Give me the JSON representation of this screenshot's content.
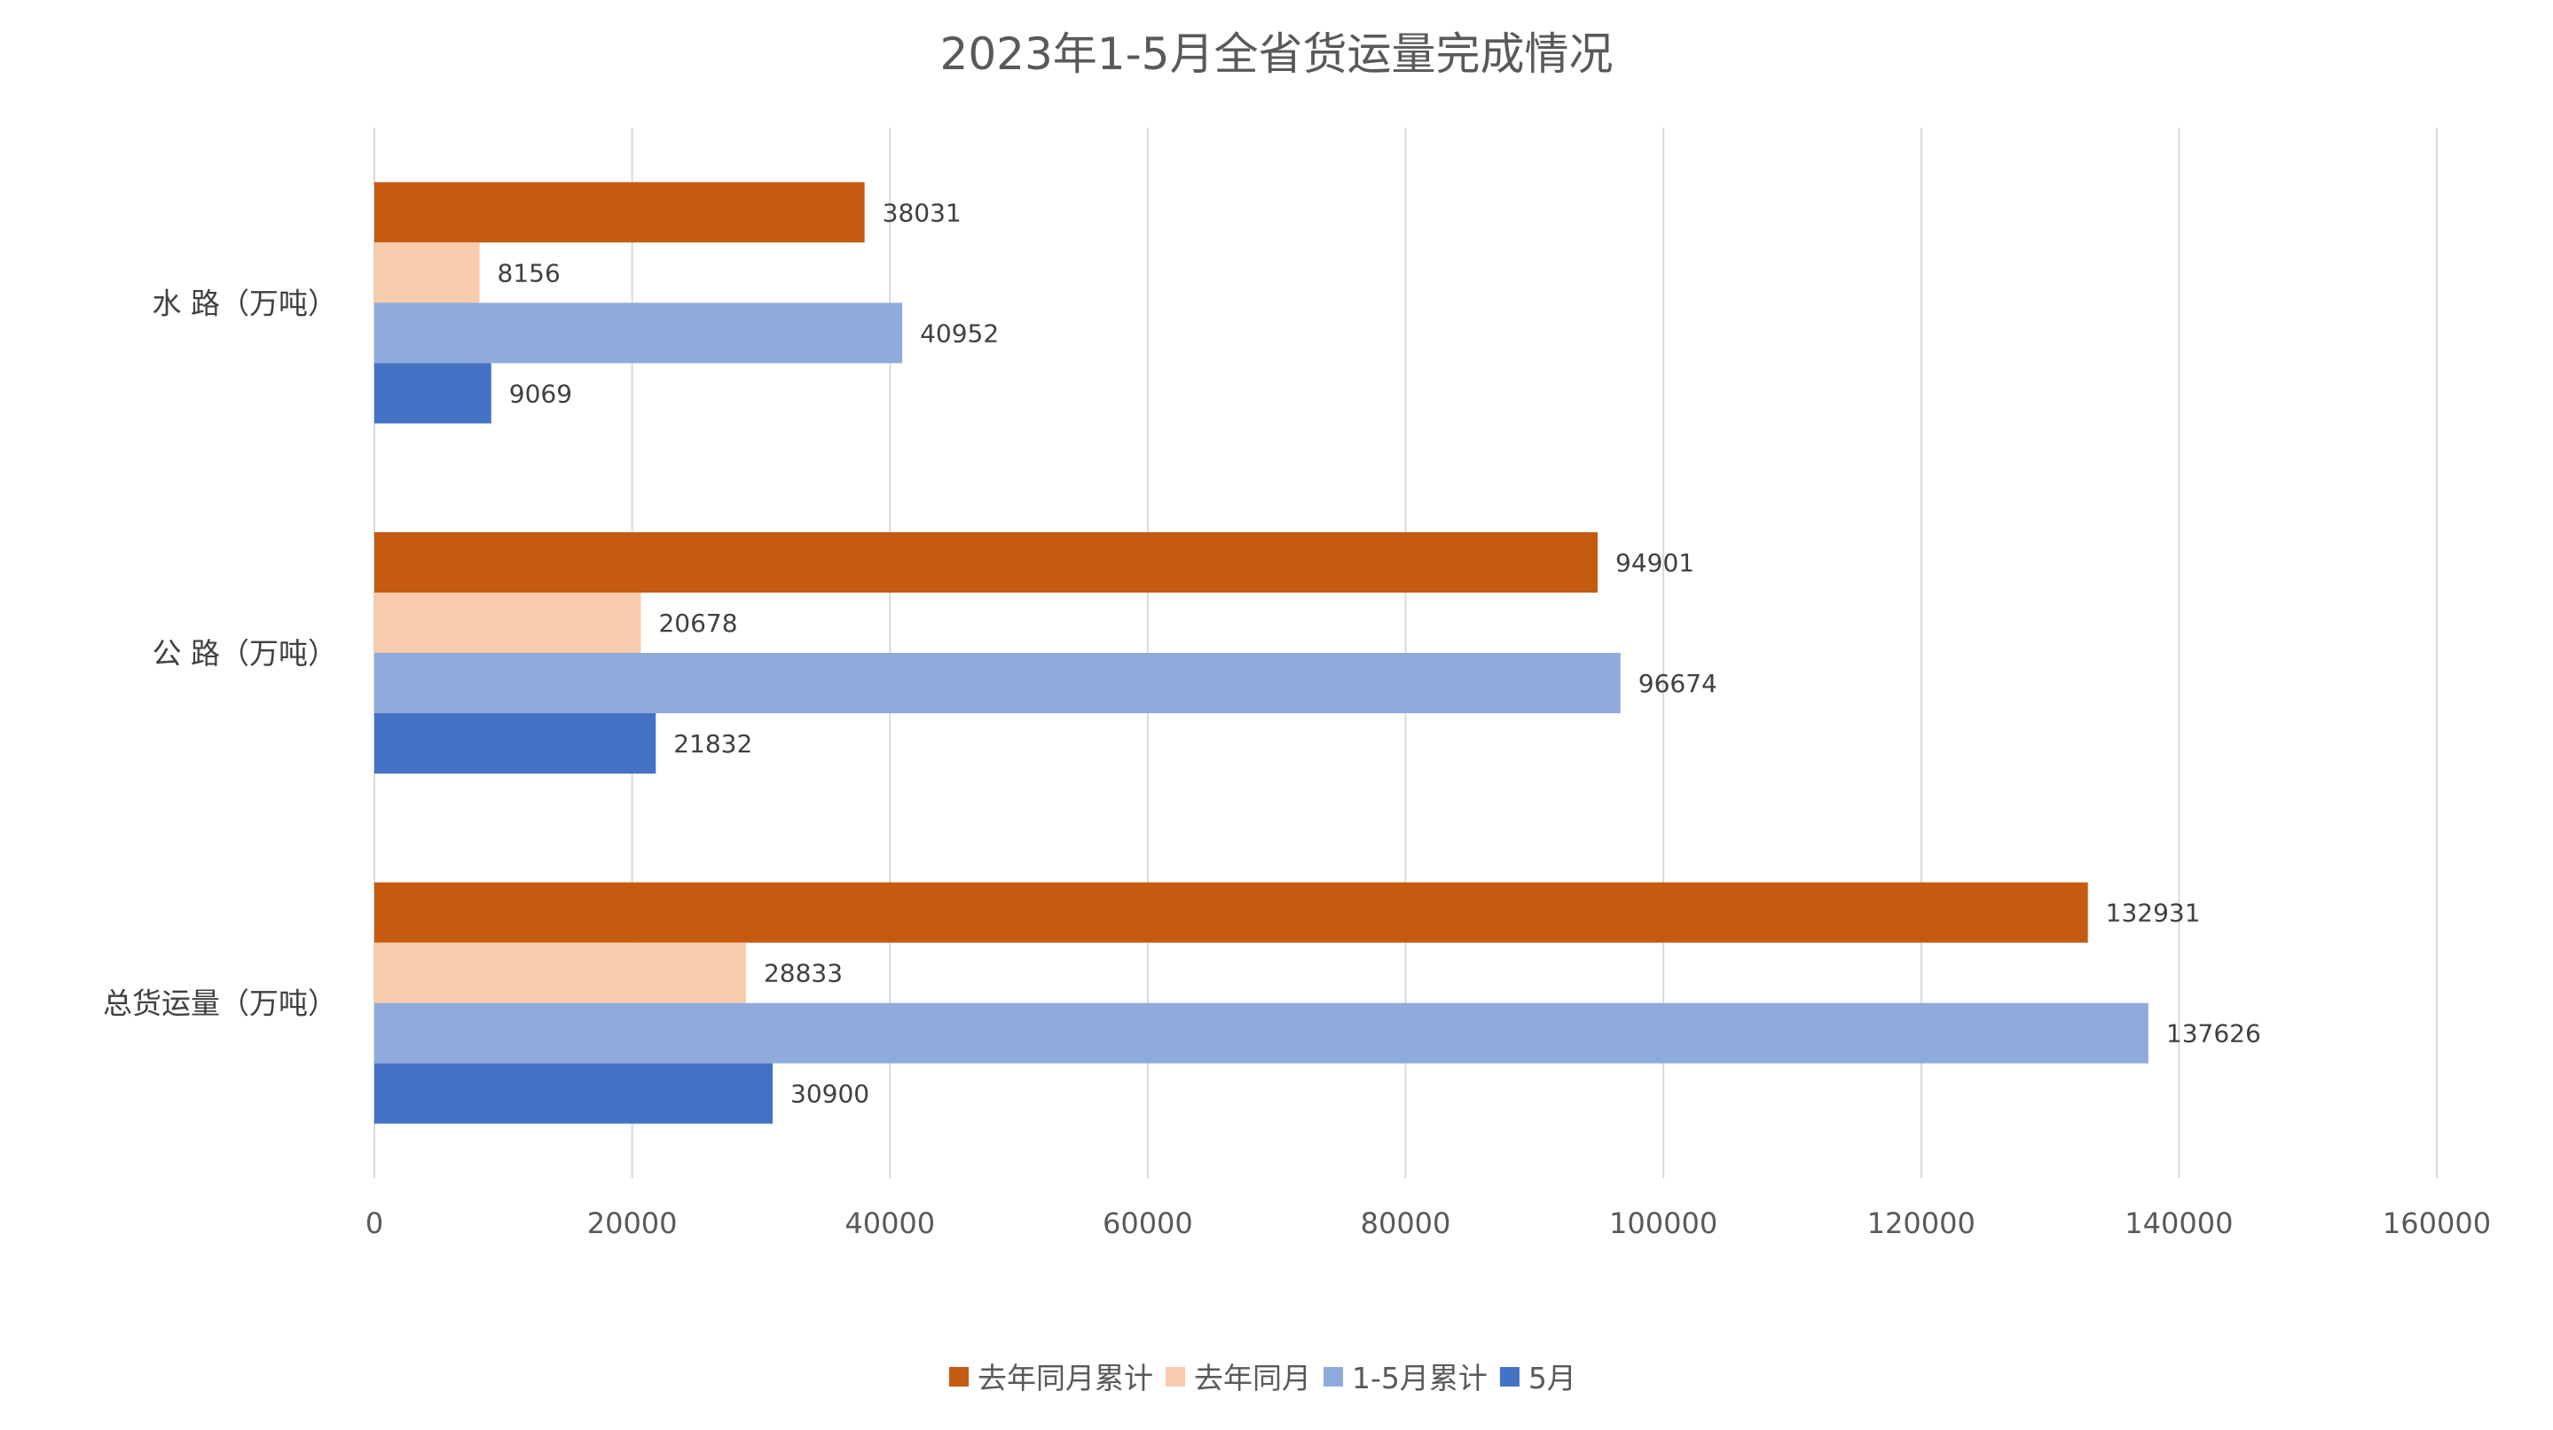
{
  "chart_data": {
    "type": "bar",
    "orientation": "horizontal",
    "title": "2023年1-5月全省货运量完成情况",
    "categories": [
      "水 路（万吨）",
      "公 路（万吨）",
      "总货运量（万吨）"
    ],
    "series": [
      {
        "name": "去年同月累计",
        "color": "#C55A11",
        "values": [
          38031,
          94901,
          132931
        ]
      },
      {
        "name": "去年同月",
        "color": "#F8CBAD",
        "values": [
          8156,
          20678,
          28833
        ]
      },
      {
        "name": "1-5月累计",
        "color": "#8FAADC",
        "values": [
          40952,
          96674,
          137626
        ]
      },
      {
        "name": "5月",
        "color": "#4472C4",
        "values": [
          9069,
          21832,
          30900
        ]
      }
    ],
    "xlim": [
      0,
      160000
    ],
    "xticks": [
      "0",
      "20000",
      "40000",
      "60000",
      "80000",
      "100000",
      "120000",
      "140000",
      "160000"
    ],
    "xlabel": "",
    "ylabel": "",
    "grid": true,
    "legend": "bottom",
    "data_labels": true
  }
}
